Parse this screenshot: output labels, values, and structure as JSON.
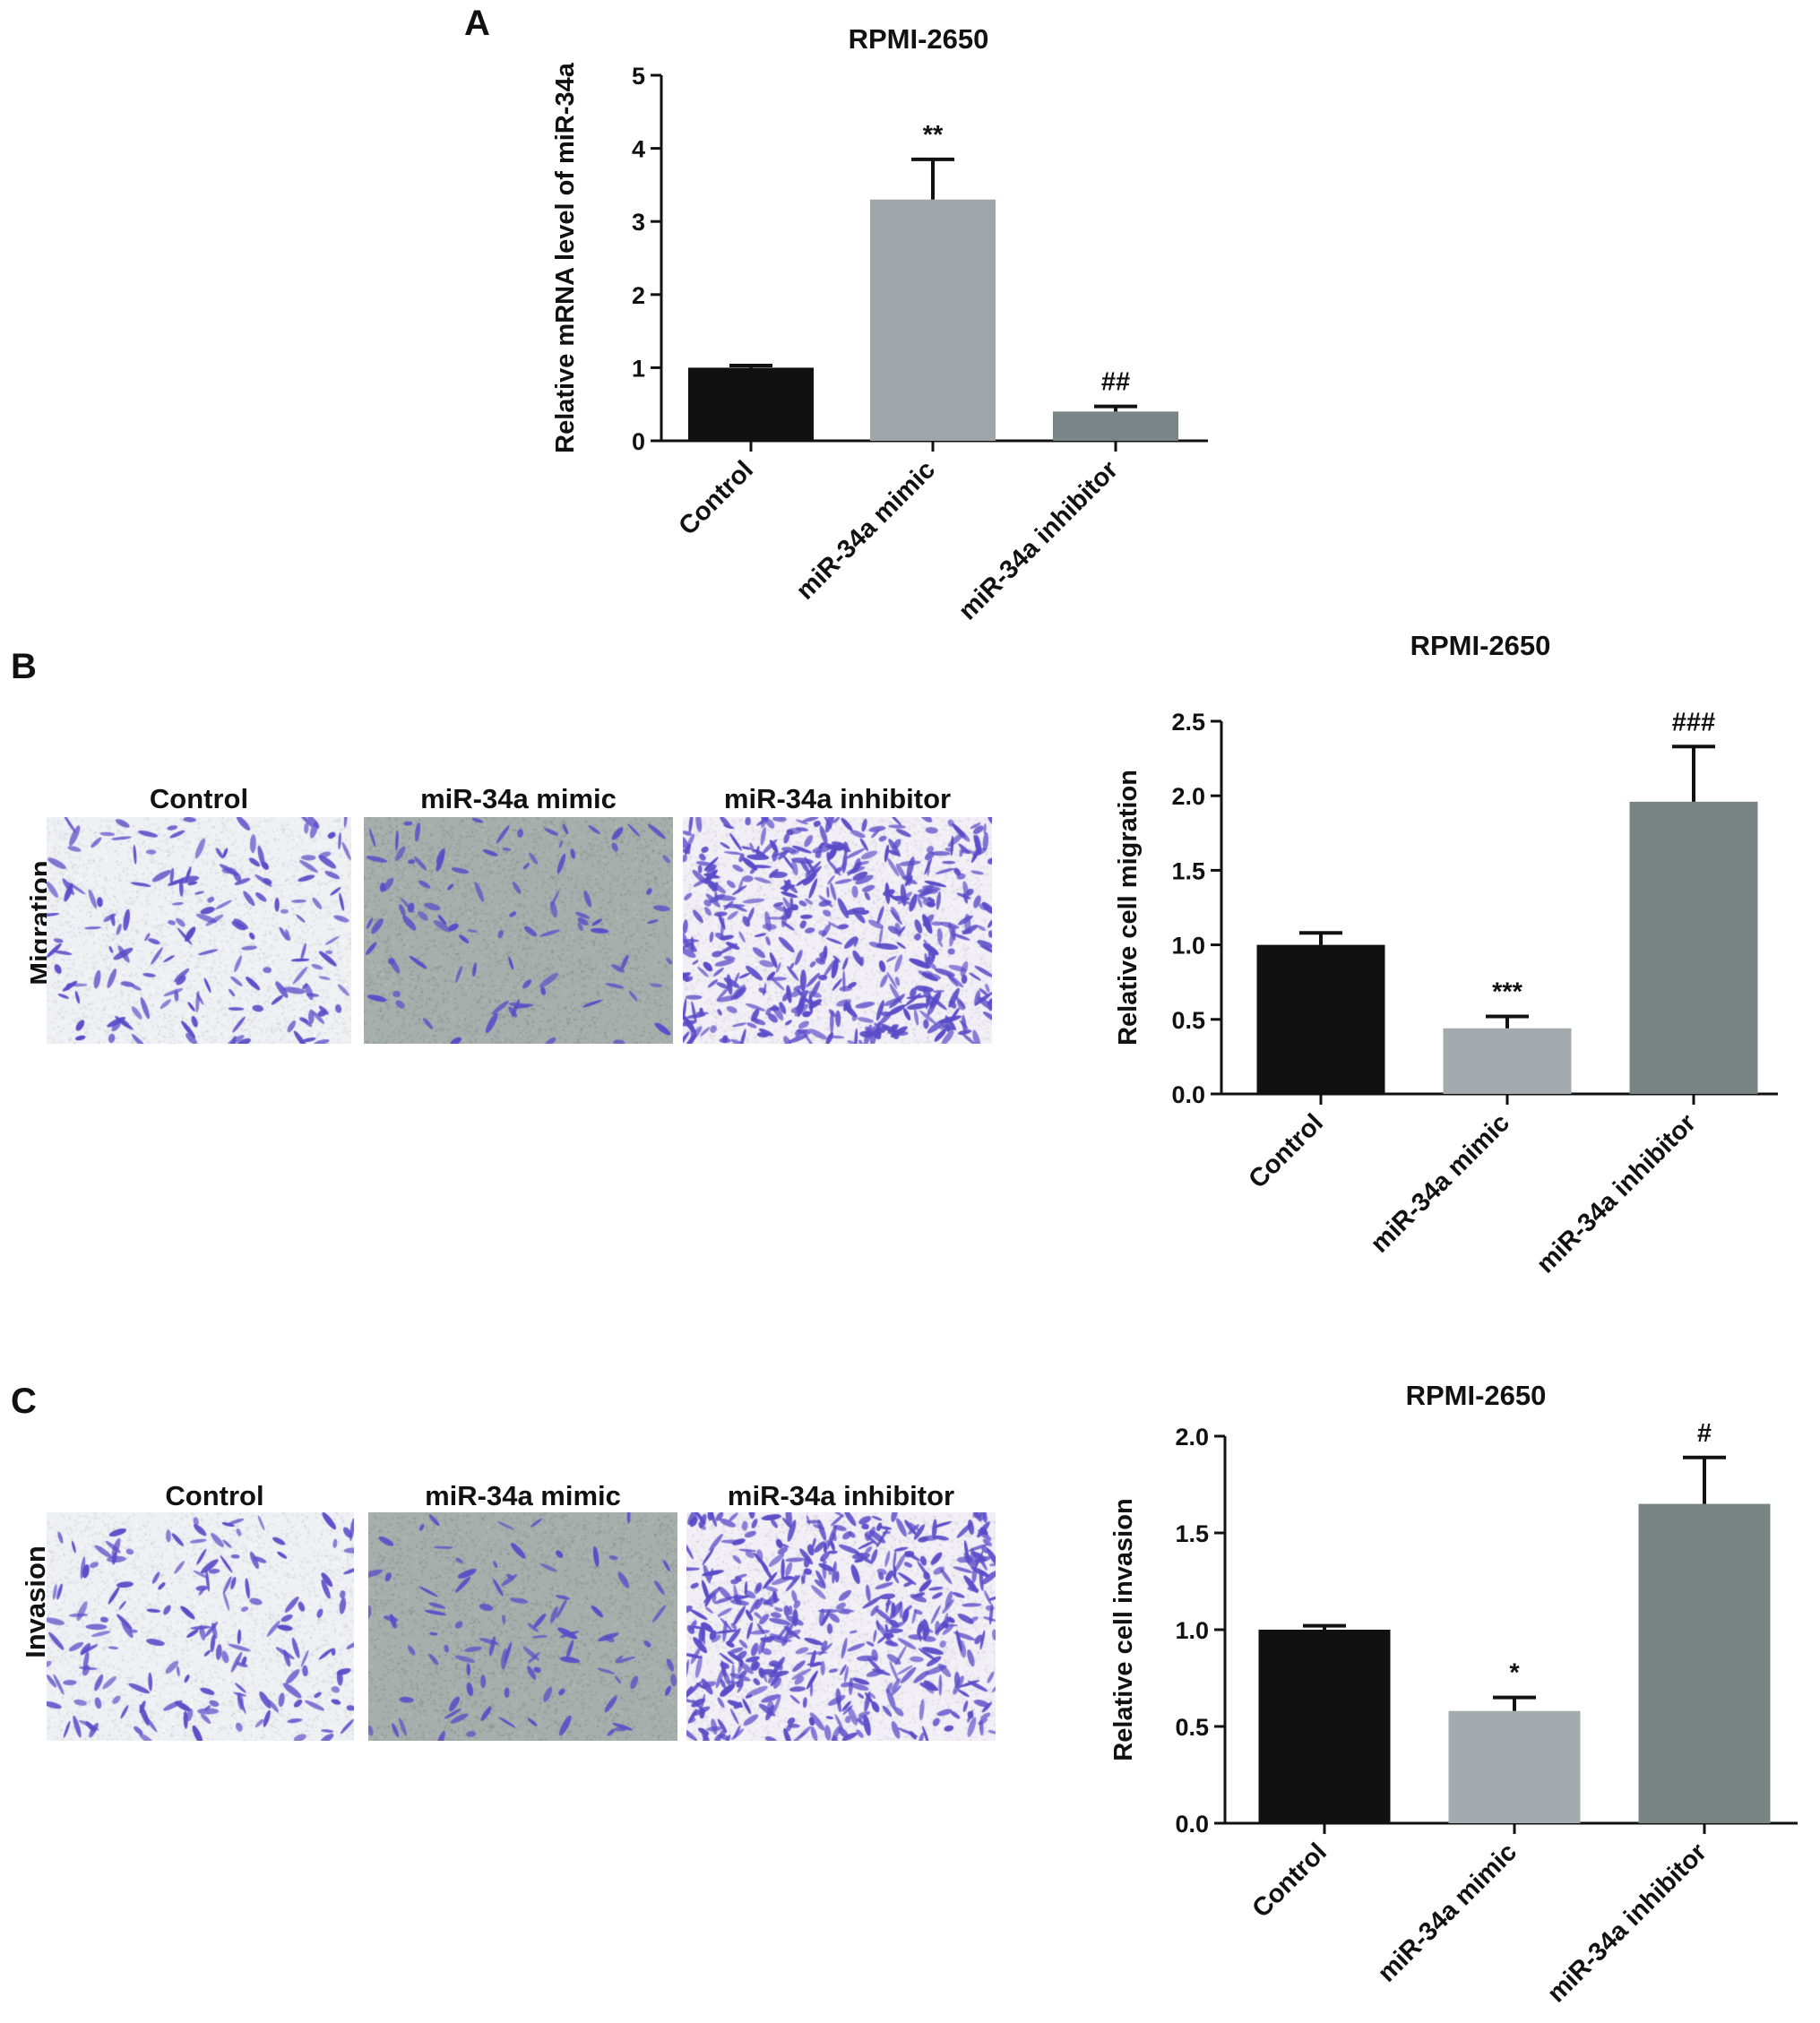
{
  "panels": {
    "a": {
      "label": "A"
    },
    "b": {
      "label": "B",
      "row_label": "Migration"
    },
    "c": {
      "label": "C",
      "row_label": "Invasion"
    }
  },
  "micrographs": {
    "titles": [
      "Control",
      "miR-34a mimic",
      "miR-34a inhibitor"
    ],
    "colors": {
      "control_bg": "#eef0f3",
      "mimic_bg": "#a6afac",
      "inhibitor_bg": "#f2eef5",
      "cell": "#5a4cc8"
    },
    "cell_density": {
      "control": 1,
      "mimic": 0.55,
      "inhibitor": 3
    }
  },
  "chart_data": [
    {
      "type": "bar",
      "panel": "A",
      "title": "RPMI-2650",
      "ylabel": "Relative mRNA level of miR-34a",
      "xlabel": "",
      "categories": [
        "Control",
        "miR-34a mimic",
        "miR-34a inhibitor"
      ],
      "values": [
        1.0,
        3.3,
        0.4
      ],
      "errors": [
        0.03,
        0.55,
        0.07
      ],
      "significance": [
        "",
        "**",
        "##"
      ],
      "ylim": [
        0,
        5
      ],
      "yticks": [
        "0",
        "1",
        "2",
        "3",
        "4",
        "5"
      ],
      "colors": [
        "#111111",
        "#9ea6aa",
        "#7a8588"
      ],
      "grid": false
    },
    {
      "type": "bar",
      "panel": "B",
      "title": "RPMI-2650",
      "ylabel": "Relative cell migration",
      "xlabel": "",
      "categories": [
        "Control",
        "miR-34a mimic",
        "miR-34a inhibitor"
      ],
      "values": [
        1.0,
        0.44,
        1.96
      ],
      "errors": [
        0.08,
        0.08,
        0.37
      ],
      "significance": [
        "",
        "***",
        "###"
      ],
      "ylim": [
        0,
        2.5
      ],
      "yticks": [
        "0.0",
        "0.5",
        "1.0",
        "1.5",
        "2.0",
        "2.5"
      ],
      "colors": [
        "#111111",
        "#a4abae",
        "#788384"
      ],
      "grid": false
    },
    {
      "type": "bar",
      "panel": "C",
      "title": "RPMI-2650",
      "ylabel": "Relative cell invasion",
      "xlabel": "",
      "categories": [
        "Control",
        "miR-34a mimic",
        "miR-34a inhibitor"
      ],
      "values": [
        1.0,
        0.58,
        1.65
      ],
      "errors": [
        0.02,
        0.07,
        0.24
      ],
      "significance": [
        "",
        "*",
        "#"
      ],
      "ylim": [
        0,
        2.0
      ],
      "yticks": [
        "0.0",
        "0.5",
        "1.0",
        "1.5",
        "2.0"
      ],
      "colors": [
        "#111111",
        "#a4abae",
        "#788384"
      ],
      "grid": false
    }
  ]
}
